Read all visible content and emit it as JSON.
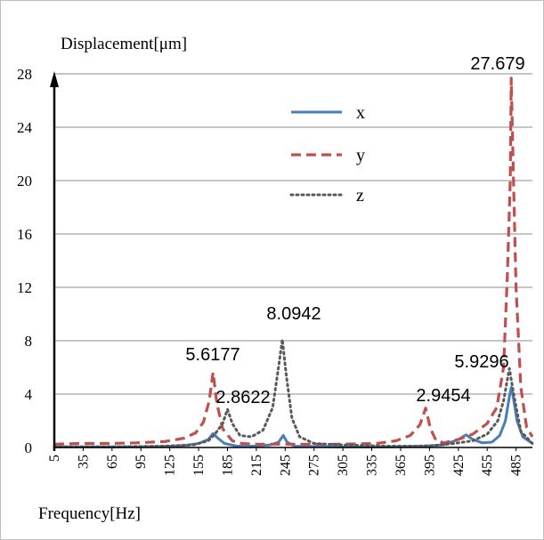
{
  "chart_data": {
    "type": "line",
    "ylabel": "Displacement[μm]",
    "xlabel": "Frequency[Hz]",
    "x_ticks": [
      "5",
      "35",
      "65",
      "95",
      "125",
      "155",
      "185",
      "215",
      "245",
      "275",
      "305",
      "335",
      "365",
      "395",
      "425",
      "455",
      "485"
    ],
    "y_ticks": [
      "0",
      "4",
      "8",
      "12",
      "16",
      "20",
      "24",
      "28"
    ],
    "xlim": [
      5,
      502
    ],
    "ylim": [
      0,
      28
    ],
    "grid": "horizontal",
    "legend_position": "upper-middle",
    "series": [
      {
        "name": "x",
        "color": "#4a7ebb",
        "style": "solid",
        "points": [
          [
            5,
            0.05
          ],
          [
            30,
            0.05
          ],
          [
            60,
            0.05
          ],
          [
            90,
            0.05
          ],
          [
            120,
            0.08
          ],
          [
            140,
            0.15
          ],
          [
            155,
            0.3
          ],
          [
            165,
            0.6
          ],
          [
            170,
            1.05
          ],
          [
            175,
            0.7
          ],
          [
            182,
            0.3
          ],
          [
            195,
            0.1
          ],
          [
            215,
            0.1
          ],
          [
            230,
            0.2
          ],
          [
            238,
            0.4
          ],
          [
            243,
            0.9
          ],
          [
            247,
            0.4
          ],
          [
            255,
            0.1
          ],
          [
            300,
            0.05
          ],
          [
            350,
            0.05
          ],
          [
            390,
            0.1
          ],
          [
            410,
            0.2
          ],
          [
            425,
            0.6
          ],
          [
            433,
            0.95
          ],
          [
            440,
            0.6
          ],
          [
            450,
            0.35
          ],
          [
            460,
            0.4
          ],
          [
            468,
            0.9
          ],
          [
            474,
            2.0
          ],
          [
            478,
            3.8
          ],
          [
            480,
            4.5
          ],
          [
            482,
            3.8
          ],
          [
            486,
            2.0
          ],
          [
            492,
            0.8
          ],
          [
            502,
            0.3
          ]
        ]
      },
      {
        "name": "y",
        "color": "#c0504d",
        "style": "dashed",
        "points": [
          [
            5,
            0.25
          ],
          [
            30,
            0.3
          ],
          [
            60,
            0.3
          ],
          [
            90,
            0.35
          ],
          [
            120,
            0.45
          ],
          [
            140,
            0.7
          ],
          [
            152,
            1.1
          ],
          [
            160,
            1.9
          ],
          [
            166,
            3.5
          ],
          [
            170,
            5.6177
          ],
          [
            174,
            3.3
          ],
          [
            180,
            1.4
          ],
          [
            190,
            0.5
          ],
          [
            200,
            0.3
          ],
          [
            215,
            0.25
          ],
          [
            250,
            0.25
          ],
          [
            300,
            0.25
          ],
          [
            340,
            0.3
          ],
          [
            360,
            0.5
          ],
          [
            375,
            0.9
          ],
          [
            385,
            1.7
          ],
          [
            391,
            2.9454
          ],
          [
            396,
            1.4
          ],
          [
            402,
            0.5
          ],
          [
            410,
            0.35
          ],
          [
            425,
            0.6
          ],
          [
            440,
            1.0
          ],
          [
            455,
            1.8
          ],
          [
            465,
            3.0
          ],
          [
            472,
            6.0
          ],
          [
            476,
            13.0
          ],
          [
            479,
            20.0
          ],
          [
            480,
            27.679
          ],
          [
            482,
            21.0
          ],
          [
            485,
            12.0
          ],
          [
            490,
            4.5
          ],
          [
            496,
            1.5
          ],
          [
            502,
            0.8
          ]
        ]
      },
      {
        "name": "z",
        "color": "#595959",
        "style": "dotted",
        "points": [
          [
            5,
            0.05
          ],
          [
            60,
            0.05
          ],
          [
            120,
            0.1
          ],
          [
            150,
            0.2
          ],
          [
            165,
            0.5
          ],
          [
            172,
            1.0
          ],
          [
            180,
            1.8
          ],
          [
            185,
            2.8622
          ],
          [
            190,
            1.8
          ],
          [
            198,
            0.9
          ],
          [
            210,
            0.8
          ],
          [
            222,
            1.3
          ],
          [
            232,
            3.0
          ],
          [
            238,
            6.0
          ],
          [
            242,
            8.0942
          ],
          [
            246,
            5.5
          ],
          [
            252,
            2.2
          ],
          [
            260,
            0.8
          ],
          [
            275,
            0.3
          ],
          [
            300,
            0.2
          ],
          [
            350,
            0.1
          ],
          [
            380,
            0.1
          ],
          [
            400,
            0.15
          ],
          [
            420,
            0.3
          ],
          [
            440,
            0.5
          ],
          [
            455,
            1.0
          ],
          [
            466,
            2.0
          ],
          [
            472,
            3.5
          ],
          [
            478,
            5.9296
          ],
          [
            483,
            3.8
          ],
          [
            490,
            1.2
          ],
          [
            502,
            0.3
          ]
        ]
      }
    ],
    "annotations": [
      {
        "text": "27.679",
        "x": 480,
        "y": 27.679
      },
      {
        "text": "8.0942",
        "x": 242,
        "y": 8.0942
      },
      {
        "text": "5.6177",
        "x": 170,
        "y": 5.6177
      },
      {
        "text": "2.8622",
        "x": 185,
        "y": 2.8622
      },
      {
        "text": "2.9454",
        "x": 391,
        "y": 2.9454
      },
      {
        "text": "5.9296",
        "x": 478,
        "y": 5.9296
      }
    ]
  }
}
